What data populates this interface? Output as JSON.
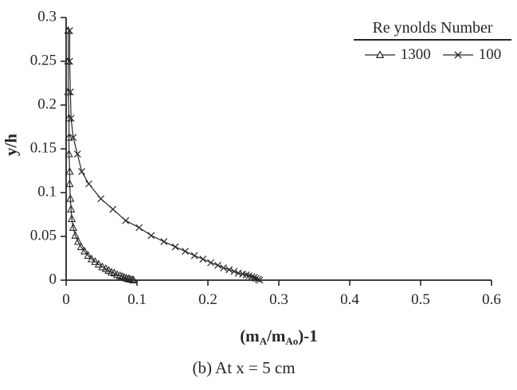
{
  "figure": {
    "caption": "(b) At x = 5 cm",
    "background": "#ffffff",
    "ink_color": "#262626"
  },
  "chart_data": {
    "type": "line",
    "title": "",
    "ylabel": "y/h",
    "xlabel_parts": {
      "p1": "(m",
      "s1": "A",
      "p2": "/m",
      "s2": "Ao",
      "p3": ")-1"
    },
    "xlim": [
      0,
      0.6
    ],
    "ylim": [
      0,
      0.3
    ],
    "xticks": [
      0,
      0.1,
      0.2,
      0.3,
      0.4,
      0.5,
      0.6
    ],
    "yticks": [
      0,
      0.05,
      0.1,
      0.15,
      0.2,
      0.25,
      0.3
    ],
    "grid": false,
    "legend": {
      "title": "Re ynolds Number",
      "position": "top-right",
      "items": [
        {
          "label": "1300",
          "marker": "triangle"
        },
        {
          "label": "100",
          "marker": "x"
        }
      ]
    },
    "series": [
      {
        "name": "1300",
        "marker": "triangle",
        "points": [
          [
            0.003,
            0.285
          ],
          [
            0.003,
            0.25
          ],
          [
            0.003,
            0.215
          ],
          [
            0.004,
            0.185
          ],
          [
            0.004,
            0.163
          ],
          [
            0.004,
            0.144
          ],
          [
            0.005,
            0.124
          ],
          [
            0.005,
            0.11
          ],
          [
            0.006,
            0.093
          ],
          [
            0.007,
            0.081
          ],
          [
            0.008,
            0.07
          ],
          [
            0.01,
            0.06
          ],
          [
            0.013,
            0.051
          ],
          [
            0.017,
            0.044
          ],
          [
            0.021,
            0.038
          ],
          [
            0.026,
            0.033
          ],
          [
            0.031,
            0.028
          ],
          [
            0.036,
            0.024
          ],
          [
            0.041,
            0.021
          ],
          [
            0.046,
            0.018
          ],
          [
            0.051,
            0.015
          ],
          [
            0.056,
            0.013
          ],
          [
            0.06,
            0.011
          ],
          [
            0.064,
            0.009
          ],
          [
            0.068,
            0.008
          ],
          [
            0.072,
            0.006
          ],
          [
            0.076,
            0.005
          ],
          [
            0.079,
            0.004
          ],
          [
            0.082,
            0.003
          ],
          [
            0.085,
            0.002
          ],
          [
            0.088,
            0.0015
          ],
          [
            0.09,
            0.001
          ],
          [
            0.093,
            0.0005
          ],
          [
            0.095,
            0.0
          ]
        ]
      },
      {
        "name": "100",
        "marker": "x",
        "points": [
          [
            0.005,
            0.285
          ],
          [
            0.005,
            0.25
          ],
          [
            0.006,
            0.215
          ],
          [
            0.007,
            0.185
          ],
          [
            0.01,
            0.163
          ],
          [
            0.016,
            0.144
          ],
          [
            0.022,
            0.124
          ],
          [
            0.032,
            0.11
          ],
          [
            0.049,
            0.093
          ],
          [
            0.066,
            0.081
          ],
          [
            0.084,
            0.068
          ],
          [
            0.103,
            0.06
          ],
          [
            0.12,
            0.051
          ],
          [
            0.138,
            0.044
          ],
          [
            0.154,
            0.038
          ],
          [
            0.168,
            0.033
          ],
          [
            0.181,
            0.028
          ],
          [
            0.193,
            0.024
          ],
          [
            0.204,
            0.02
          ],
          [
            0.214,
            0.017
          ],
          [
            0.222,
            0.014
          ],
          [
            0.23,
            0.012
          ],
          [
            0.237,
            0.01
          ],
          [
            0.243,
            0.008
          ],
          [
            0.249,
            0.007
          ],
          [
            0.254,
            0.006
          ],
          [
            0.258,
            0.005
          ],
          [
            0.262,
            0.004
          ],
          [
            0.265,
            0.003
          ],
          [
            0.268,
            0.002
          ],
          [
            0.271,
            0.001
          ],
          [
            0.273,
            0.0
          ]
        ]
      }
    ]
  }
}
